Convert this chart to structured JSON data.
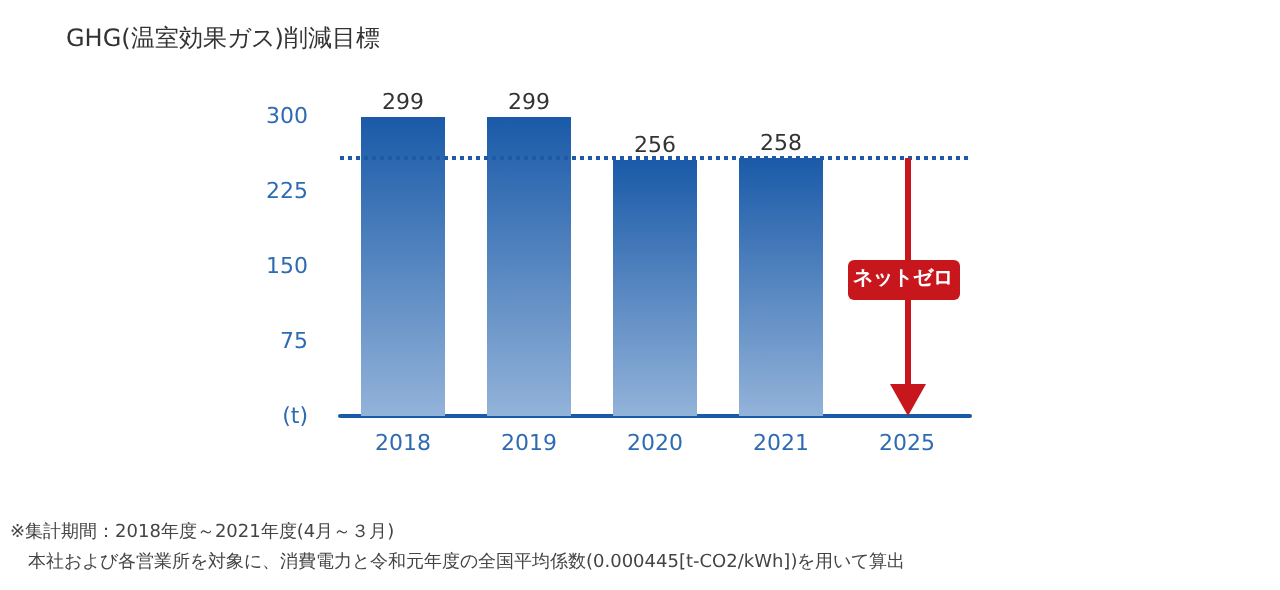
{
  "chart_data": {
    "type": "bar",
    "title": "GHG(温室効果ガス)削減目標",
    "categories": [
      "2018",
      "2019",
      "2020",
      "2021",
      "2025"
    ],
    "values": [
      299,
      299,
      256,
      258,
      null
    ],
    "color": "#1a5aa8",
    "data_labels": true,
    "ylim": [
      0,
      300
    ],
    "yticks": [
      {
        "value": 0,
        "label": "(t)"
      },
      75,
      150,
      225,
      300
    ],
    "grid": false,
    "ref_lines": [
      {
        "axis": "y",
        "value": 258,
        "label": null,
        "color": "#1a5aa8",
        "line_style": "dotted"
      }
    ],
    "annotations": [
      "ネットゼロ",
      "※集計期間：2018年度～2021年度(4月～３月)",
      "本社および各営業所を対象に、消費電力と令和元年度の全国平均係数(0.000445[t-CO2/kWh])を用いて算出"
    ]
  }
}
